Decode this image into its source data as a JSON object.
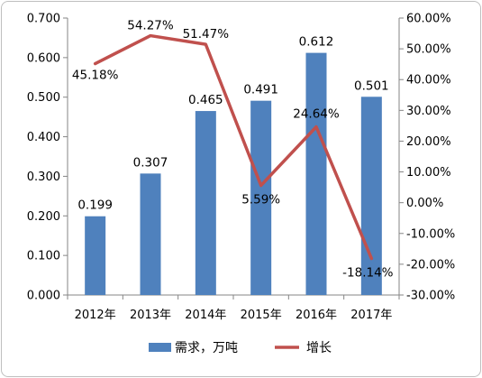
{
  "chart_data": {
    "type": "bar",
    "categories": [
      "2012年",
      "2013年",
      "2014年",
      "2015年",
      "2016年",
      "2017年"
    ],
    "series": [
      {
        "name": "需求，万吨",
        "type": "bar",
        "axis": "left",
        "values": [
          0.199,
          0.307,
          0.465,
          0.491,
          0.612,
          0.501
        ],
        "labels": [
          "0.199",
          "0.307",
          "0.465",
          "0.491",
          "0.612",
          "0.501"
        ],
        "color": "#4f81bd"
      },
      {
        "name": "增长",
        "type": "line",
        "axis": "right",
        "values": [
          45.18,
          54.27,
          51.47,
          5.59,
          24.64,
          -18.14
        ],
        "labels": [
          "45.18%",
          "54.27%",
          "51.47%",
          "5.59%",
          "24.64%",
          "-18.14%"
        ],
        "color": "#c0504d"
      }
    ],
    "y_left": {
      "ylim": [
        0,
        0.7
      ],
      "ticks": [
        "0.000",
        "0.100",
        "0.200",
        "0.300",
        "0.400",
        "0.500",
        "0.600",
        "0.700"
      ]
    },
    "y_right": {
      "ylim": [
        -30,
        60
      ],
      "ticks": [
        "-30.00%",
        "-20.00%",
        "-10.00%",
        "0.00%",
        "10.00%",
        "20.00%",
        "30.00%",
        "40.00%",
        "50.00%",
        "60.00%"
      ]
    },
    "grid": false,
    "legend": "bottom"
  }
}
